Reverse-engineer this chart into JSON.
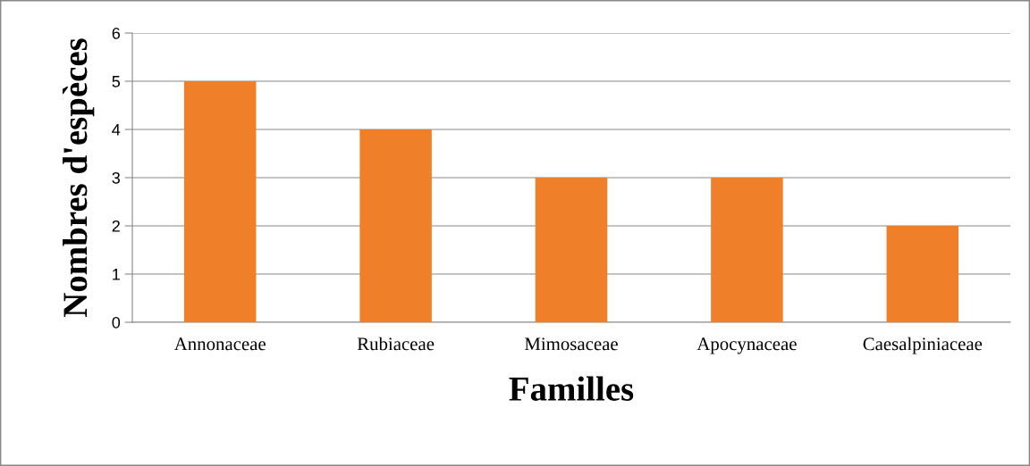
{
  "chart_data": {
    "type": "bar",
    "xlabel": "Familles",
    "ylabel": "Nombres d'espèces",
    "categories": [
      "Annonaceae",
      "Rubiaceae",
      "Mimosaceae",
      "Apocynaceae",
      "Caesalpiniaceae"
    ],
    "values": [
      5,
      4,
      3,
      3,
      2
    ],
    "color": "#f07f2a",
    "ylim": [
      0,
      6
    ],
    "yticks": [
      0,
      1,
      2,
      3,
      4,
      5,
      6
    ],
    "grid": "y"
  }
}
